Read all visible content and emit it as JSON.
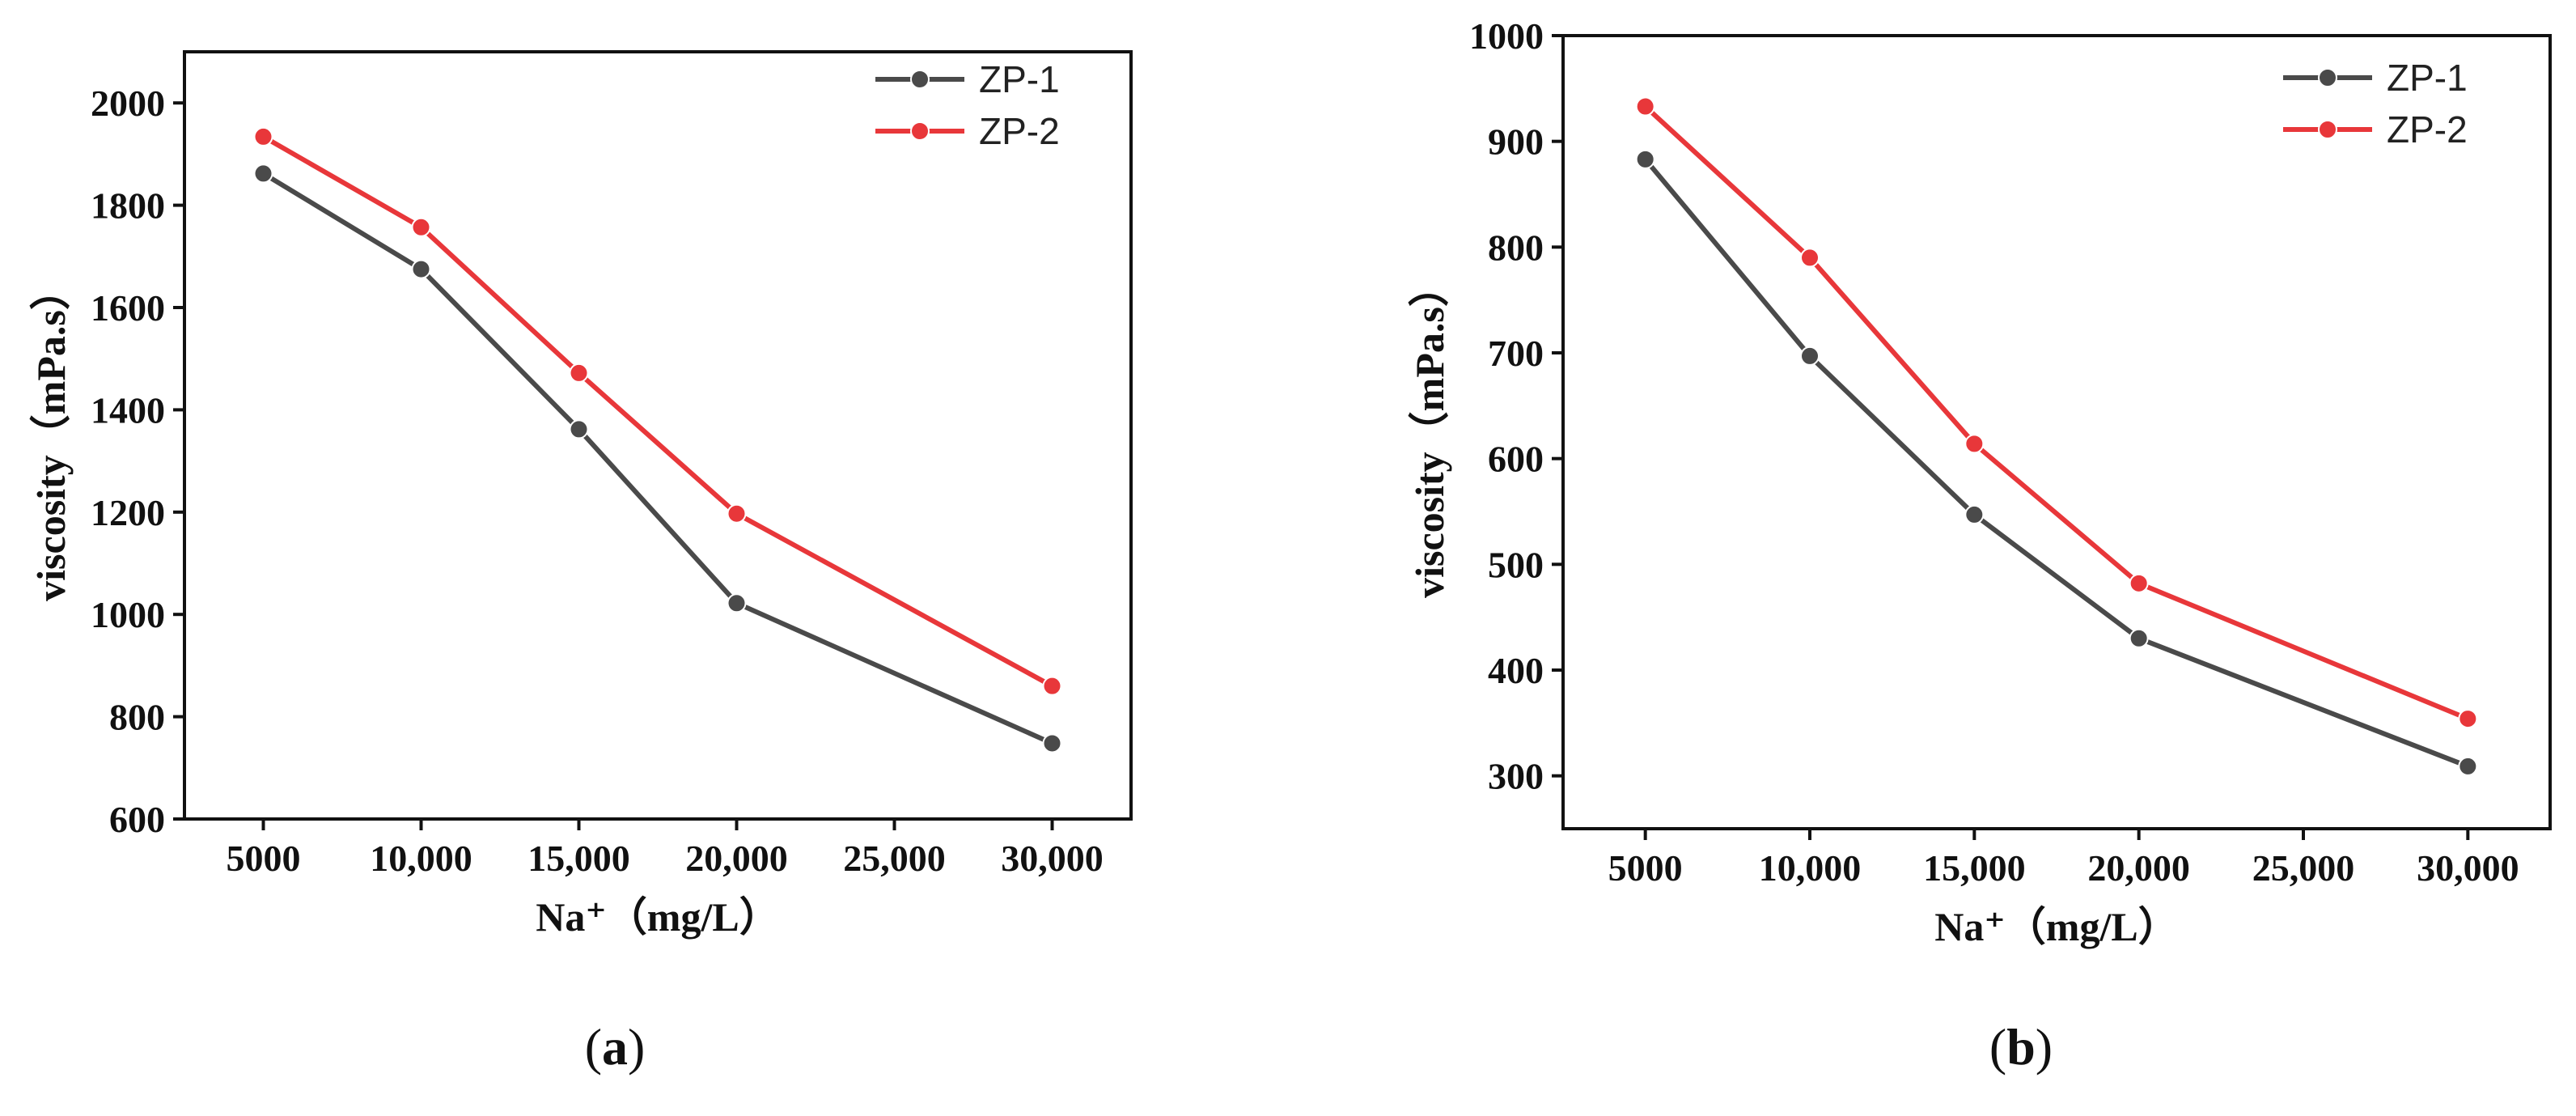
{
  "chart_data": [
    {
      "type": "line",
      "panel": "a",
      "caption": {
        "open": "(",
        "letter": "a",
        "close": ")"
      },
      "x": [
        5000,
        10000,
        15000,
        20000,
        30000
      ],
      "xlim": [
        2500,
        32500
      ],
      "xticks": [
        5000,
        10000,
        15000,
        20000,
        25000,
        30000
      ],
      "xtick_labels": [
        "5000",
        "10,000",
        "15,000",
        "20,000",
        "25,000",
        "30,000"
      ],
      "ylim": [
        600,
        2100
      ],
      "yticks": [
        600,
        800,
        1000,
        1200,
        1400,
        1600,
        1800,
        2000
      ],
      "xlabel": "Na⁺（mg/L）",
      "ylabel": "viscosity（mPa.s）",
      "legend_position": "top-right",
      "series": [
        {
          "name": "ZP-1",
          "color": "#4a4a4a",
          "values": [
            1862,
            1675,
            1362,
            1022,
            748
          ]
        },
        {
          "name": "ZP-2",
          "color": "#e8373a",
          "values": [
            1934,
            1757,
            1472,
            1197,
            860
          ]
        }
      ]
    },
    {
      "type": "line",
      "panel": "b",
      "caption": {
        "open": "(",
        "letter": "b",
        "close": ")"
      },
      "x": [
        5000,
        10000,
        15000,
        20000,
        30000
      ],
      "xlim": [
        2500,
        32500
      ],
      "xticks": [
        5000,
        10000,
        15000,
        20000,
        25000,
        30000
      ],
      "xtick_labels": [
        "5000",
        "10,000",
        "15,000",
        "20,000",
        "25,000",
        "30,000"
      ],
      "ylim": [
        250,
        1000
      ],
      "yticks": [
        300,
        400,
        500,
        600,
        700,
        800,
        900,
        1000
      ],
      "xlabel": "Na⁺（mg/L）",
      "ylabel": "viscosity（mPa.s）",
      "legend_position": "top-right",
      "series": [
        {
          "name": "ZP-1",
          "color": "#4a4a4a",
          "values": [
            883,
            697,
            547,
            430,
            309
          ]
        },
        {
          "name": "ZP-2",
          "color": "#e8373a",
          "values": [
            933,
            790,
            614,
            482,
            354
          ]
        }
      ]
    }
  ]
}
